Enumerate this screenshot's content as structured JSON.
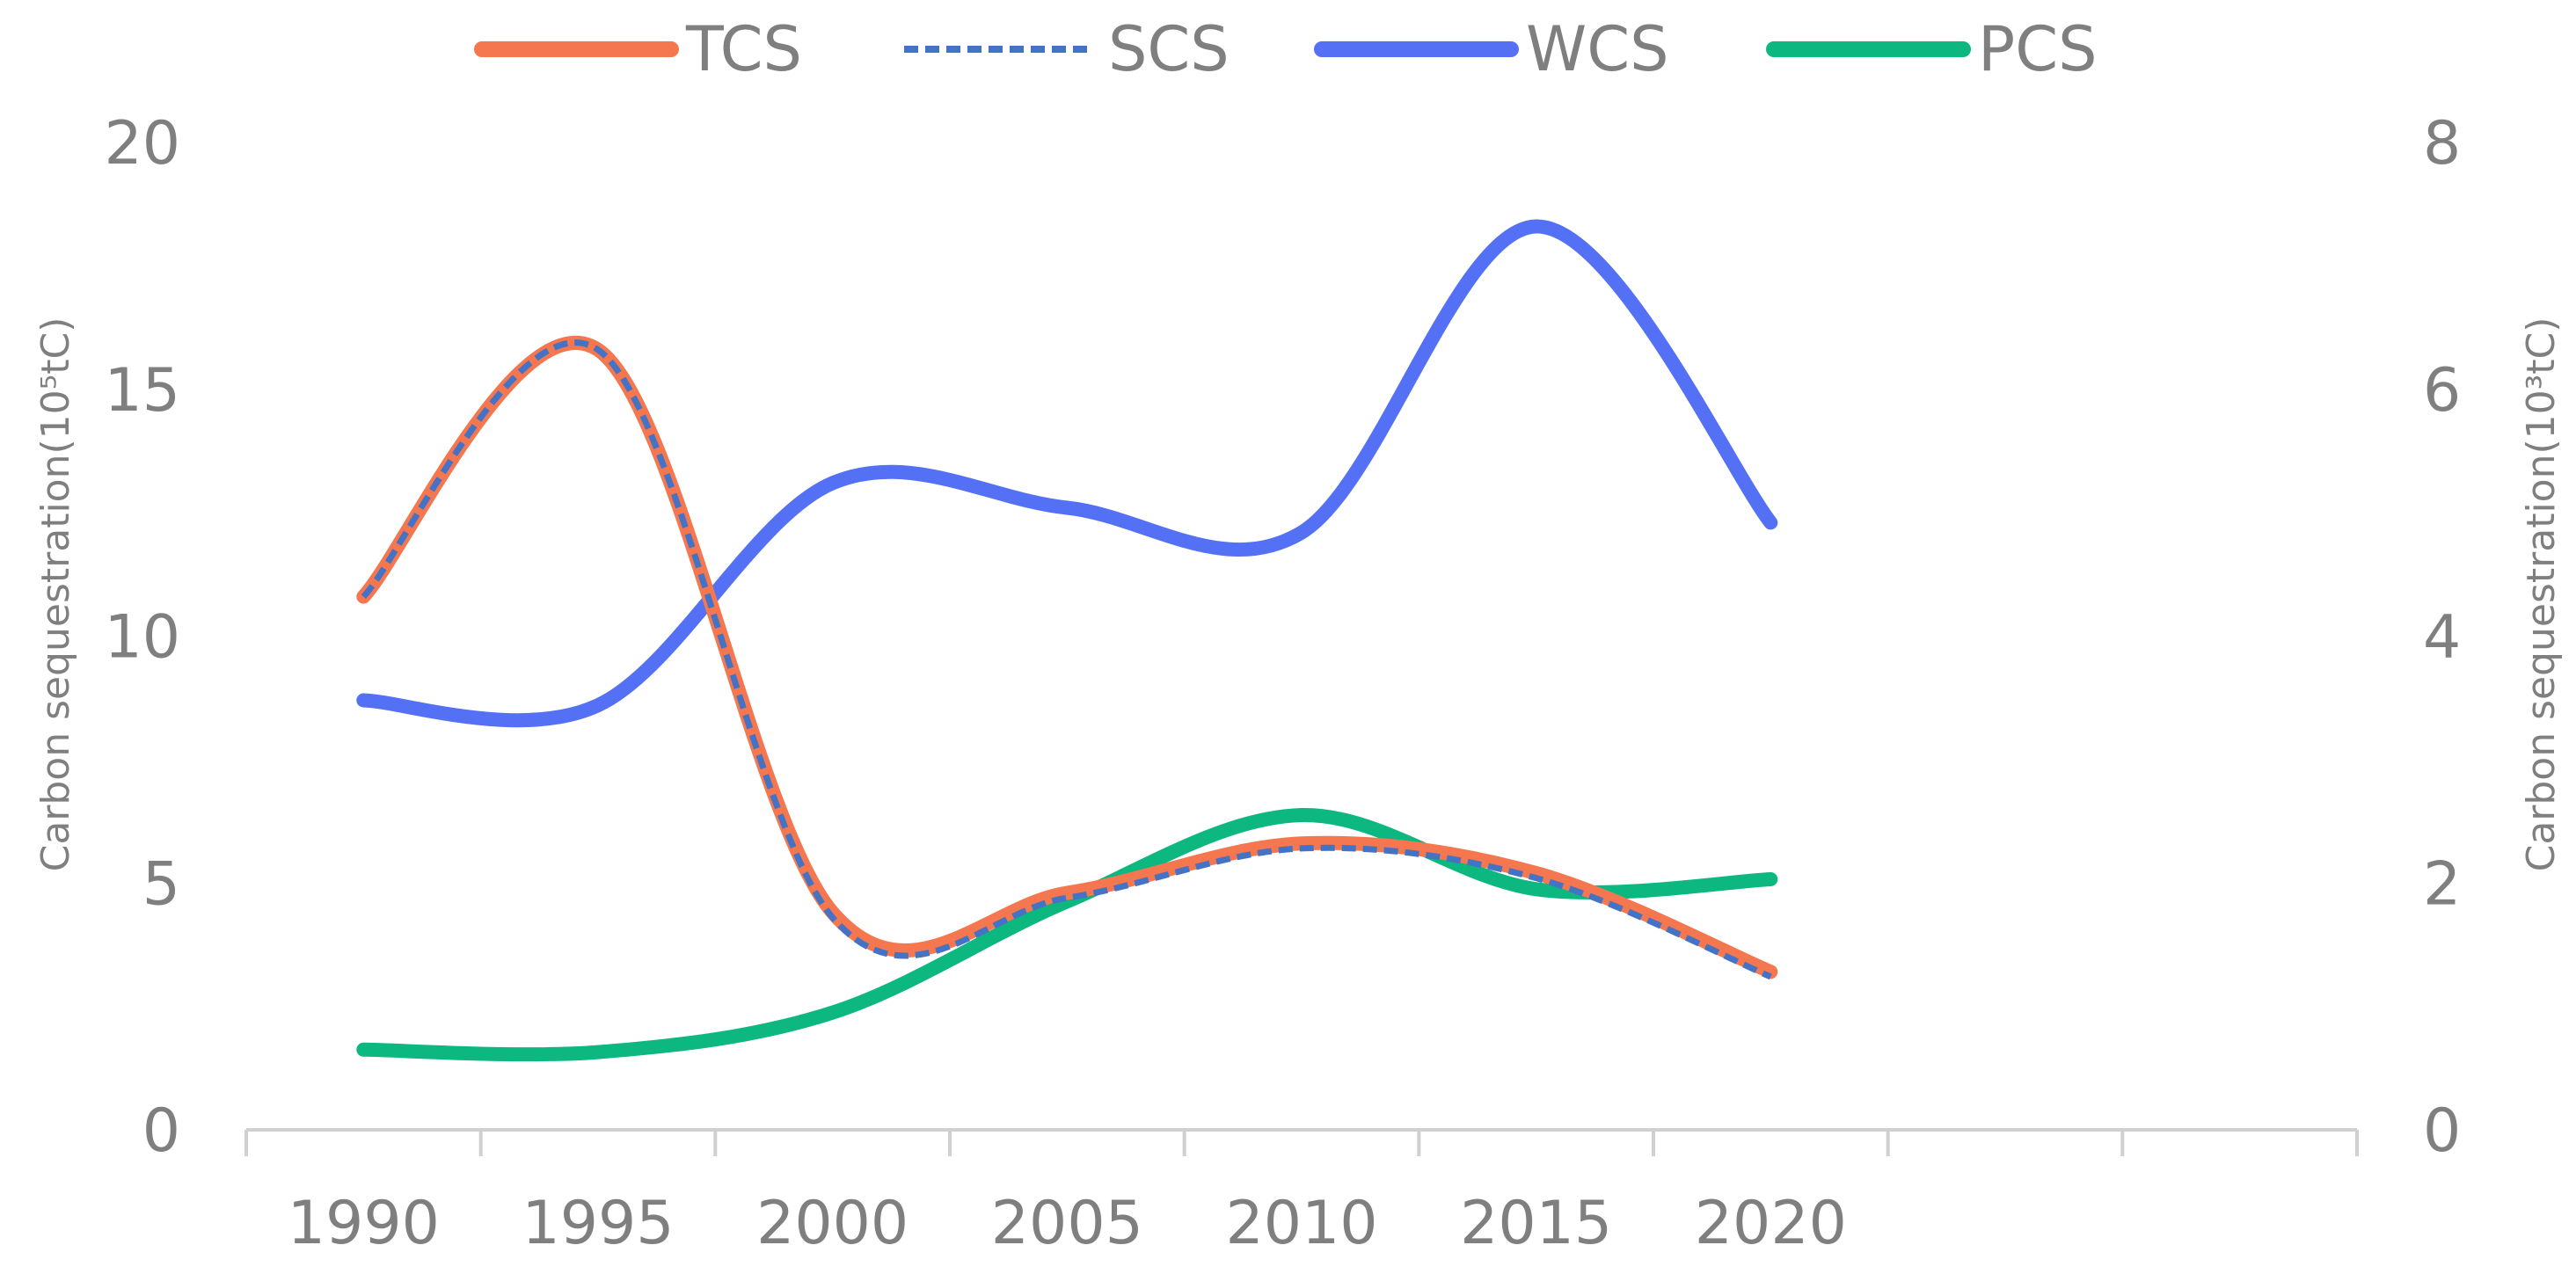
{
  "chart_data": {
    "type": "line",
    "smooth": true,
    "x": [
      1990,
      1995,
      2000,
      2005,
      2010,
      2015,
      2020
    ],
    "x_ticks": [
      "1990",
      "1995",
      "2000",
      "2005",
      "2010",
      "2015",
      "2020"
    ],
    "x_categories_slots": 9,
    "y_left": {
      "label": "Carbon sequestration(10⁵tC)",
      "ylim": [
        0,
        20
      ],
      "ticks": [
        "0",
        "5",
        "10",
        "15",
        "20"
      ]
    },
    "y_right": {
      "label": "Carbon sequestration(10³tC)",
      "ylim": [
        0,
        8
      ],
      "ticks": [
        "0",
        "2",
        "4",
        "6",
        "8"
      ]
    },
    "grid": false,
    "legend_position": "top",
    "series": [
      {
        "name": "TCS",
        "axis": "left",
        "color": "#f4774f",
        "dashed": false,
        "values": [
          10.8,
          15.8,
          4.4,
          4.8,
          5.8,
          5.2,
          3.2
        ]
      },
      {
        "name": "SCS",
        "axis": "left",
        "color": "#4472c4",
        "dashed": true,
        "values": [
          10.8,
          15.8,
          4.3,
          4.7,
          5.7,
          5.1,
          3.1
        ]
      },
      {
        "name": "WCS",
        "axis": "left",
        "color": "#5470f5",
        "dashed": false,
        "values": [
          8.7,
          8.6,
          13.1,
          12.6,
          12.1,
          18.3,
          12.3
        ]
      },
      {
        "name": "PCS",
        "axis": "right",
        "color": "#0db780",
        "dashed": false,
        "values": [
          0.65,
          0.63,
          0.95,
          1.85,
          2.55,
          1.95,
          2.03
        ]
      }
    ]
  }
}
